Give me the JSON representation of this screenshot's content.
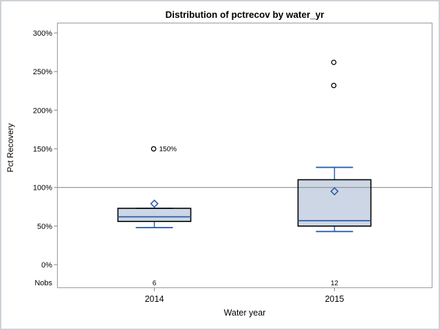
{
  "chart_data": {
    "type": "boxplot",
    "title": "Distribution of pctrecov by water_yr",
    "xlabel": "Water year",
    "ylabel": "Pct Recovery",
    "categories": [
      "2014",
      "2015"
    ],
    "nobs_label": "Nobs",
    "nobs": [
      "6",
      "12"
    ],
    "y_tick_labels": [
      "0%",
      "50%",
      "100%",
      "150%",
      "200%",
      "250%",
      "300%"
    ],
    "y_tick_values": [
      0,
      50,
      100,
      150,
      200,
      250,
      300
    ],
    "ylim": [
      0,
      300
    ],
    "refline": 100,
    "grid": "off",
    "legend": "none",
    "series": [
      {
        "category": "2014",
        "whisker_low": 48,
        "q1": 56,
        "median": 62,
        "q3": 73,
        "whisker_high": 73,
        "mean": 79,
        "outliers": [
          {
            "value": 150,
            "label": "150%"
          }
        ]
      },
      {
        "category": "2015",
        "whisker_low": 43,
        "q1": 50,
        "median": 57,
        "q3": 110,
        "whisker_high": 126,
        "mean": 95,
        "outliers": [
          {
            "value": 232,
            "label": ""
          },
          {
            "value": 262,
            "label": ""
          }
        ]
      }
    ],
    "colors": {
      "box_fill": "#ccd6e4",
      "box_border": "#000000",
      "line": "#2a5caa",
      "outlier_stroke": "#000000",
      "refline": "#8c8c8c",
      "frame": "#a0a6ab",
      "tick": "#8e9499",
      "text": "#000000"
    }
  }
}
